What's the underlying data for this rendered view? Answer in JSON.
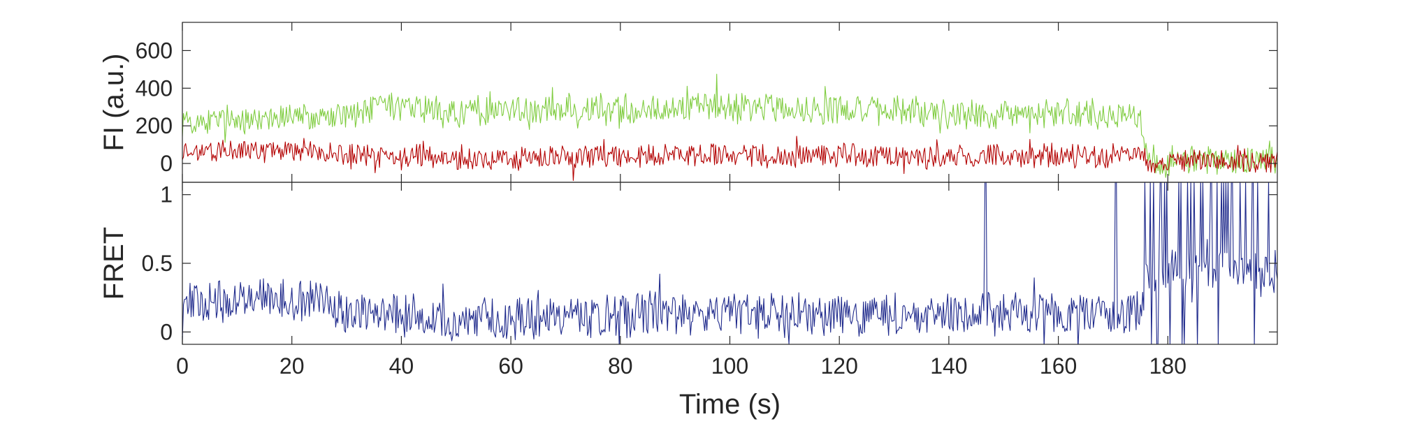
{
  "chart_data": [
    {
      "type": "line",
      "ylabel": "FI (a.u.)",
      "xlim": [
        0,
        200
      ],
      "ylim": [
        -100,
        750
      ],
      "yticks": [
        0,
        200,
        400,
        600
      ],
      "grid": false,
      "series": [
        {
          "color": "#7fcc3f",
          "x": [
            0,
            5,
            10,
            15,
            20,
            25,
            30,
            35,
            40,
            45,
            50,
            55,
            60,
            65,
            70,
            75,
            80,
            85,
            90,
            95,
            100,
            105,
            110,
            115,
            120,
            125,
            130,
            135,
            140,
            145,
            150,
            155,
            160,
            165,
            170,
            174,
            175,
            176,
            180,
            185,
            190,
            195,
            200
          ],
          "values": [
            230,
            220,
            240,
            230,
            260,
            240,
            250,
            290,
            290,
            290,
            270,
            280,
            290,
            280,
            310,
            290,
            270,
            280,
            300,
            310,
            300,
            300,
            290,
            290,
            300,
            280,
            280,
            270,
            270,
            260,
            260,
            260,
            260,
            260,
            260,
            260,
            260,
            40,
            20,
            20,
            20,
            20,
            20
          ],
          "noise_amplitude": 70
        },
        {
          "color": "#b30000",
          "x": [
            0,
            5,
            10,
            15,
            20,
            25,
            30,
            35,
            40,
            45,
            50,
            55,
            60,
            65,
            70,
            75,
            80,
            85,
            90,
            95,
            100,
            105,
            110,
            115,
            120,
            125,
            130,
            135,
            140,
            145,
            150,
            155,
            160,
            165,
            170,
            174,
            175,
            176,
            180,
            185,
            190,
            195,
            200
          ],
          "values": [
            70,
            60,
            70,
            70,
            75,
            75,
            50,
            40,
            40,
            35,
            20,
            30,
            30,
            30,
            40,
            40,
            40,
            40,
            40,
            45,
            50,
            40,
            40,
            40,
            40,
            40,
            40,
            40,
            40,
            40,
            40,
            40,
            45,
            40,
            40,
            40,
            40,
            10,
            10,
            10,
            10,
            10,
            10
          ],
          "noise_amplitude": 55
        }
      ]
    },
    {
      "type": "line",
      "ylabel": "FRET",
      "xlabel": "Time (s)",
      "xlim": [
        0,
        200
      ],
      "ylim": [
        -0.09,
        1.09
      ],
      "xticks": [
        0,
        20,
        40,
        60,
        80,
        100,
        120,
        140,
        160,
        180
      ],
      "yticks": [
        0,
        0.5,
        1
      ],
      "ytick_labels": [
        "0",
        "0.5",
        "1"
      ],
      "grid": false,
      "series": [
        {
          "color": "#1f2a8c",
          "x": [
            0,
            5,
            10,
            15,
            20,
            25,
            30,
            35,
            40,
            45,
            50,
            55,
            60,
            65,
            70,
            75,
            80,
            85,
            90,
            95,
            100,
            105,
            110,
            115,
            120,
            125,
            130,
            135,
            140,
            145,
            150,
            155,
            160,
            165,
            170,
            174,
            175,
            176,
            180,
            185,
            190,
            195,
            200
          ],
          "values": [
            0.24,
            0.22,
            0.24,
            0.24,
            0.23,
            0.24,
            0.17,
            0.12,
            0.12,
            0.11,
            0.07,
            0.1,
            0.1,
            0.1,
            0.12,
            0.12,
            0.13,
            0.13,
            0.12,
            0.13,
            0.14,
            0.12,
            0.12,
            0.12,
            0.12,
            0.13,
            0.13,
            0.13,
            0.13,
            0.13,
            0.13,
            0.13,
            0.14,
            0.13,
            0.13,
            0.13,
            0.13,
            0.4,
            0.45,
            0.45,
            0.45,
            0.45,
            0.45
          ],
          "noise_amplitude": 0.14,
          "spikes": [
            {
              "x": 146.7,
              "y": 1.1
            },
            {
              "x": 170.5,
              "y": 1.1
            }
          ]
        }
      ]
    }
  ]
}
